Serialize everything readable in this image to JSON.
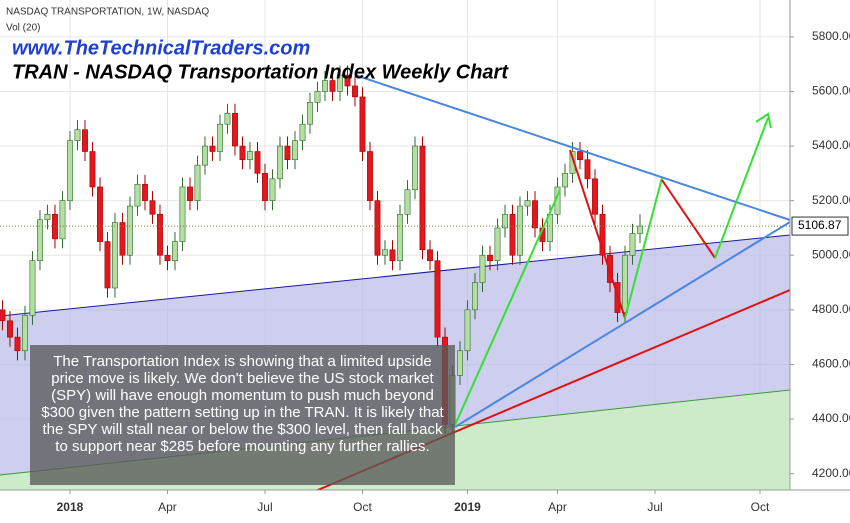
{
  "chart_data": {
    "type": "candlestick",
    "header": "NASDAQ TRANSPORTATION, 1W, NASDAQ",
    "volume_label": "Vol (20)",
    "title": "www.TheTechnicalTraders.com",
    "subtitle": "TRAN - NASDAQ Transportation Index Weekly Chart",
    "annotation": "The Transportation Index is showing that a limited upside price move is likely.  We don't believe the US stock market (SPY) will have enough momentum to push much beyond $300 given the pattern setting up in the TRAN.  It is likely that the SPY will stall near or below the $300 level, then fall back to support near $285 before mounting any further rallies.",
    "open": [
      4800,
      4760,
      4700,
      4650,
      4780,
      4980,
      5130,
      5150,
      5060,
      5200,
      5420,
      5460,
      5380,
      5250,
      5050,
      4880,
      5120,
      5000,
      5180,
      5260,
      5200,
      5150,
      5000,
      4980,
      5050,
      5250,
      5200,
      5330,
      5400,
      5380,
      5480,
      5520,
      5400,
      5350,
      5380,
      5300,
      5200,
      5280,
      5400,
      5350,
      5420,
      5480,
      5560,
      5600,
      5640,
      5600,
      5660,
      5620,
      5580,
      5380,
      5200,
      5000,
      5020,
      4980,
      5150,
      5240,
      5400,
      5020,
      4980,
      4700,
      4380,
      4560,
      4650,
      4800,
      4900,
      5000,
      4980,
      5100,
      5150,
      5000,
      5180,
      5200,
      5100,
      5050,
      5150,
      5250,
      5300,
      5380,
      5350,
      5280,
      5150,
      5000,
      4900,
      4790,
      5000,
      5080
    ],
    "high": [
      4835,
      4795,
      4735,
      4815,
      5015,
      5165,
      5185,
      5185,
      5235,
      5455,
      5495,
      5495,
      5415,
      5285,
      5085,
      5155,
      5155,
      5215,
      5295,
      5295,
      5235,
      5185,
      5035,
      5085,
      5285,
      5285,
      5365,
      5435,
      5435,
      5515,
      5555,
      5555,
      5435,
      5415,
      5415,
      5335,
      5315,
      5435,
      5435,
      5455,
      5515,
      5595,
      5635,
      5675,
      5675,
      5695,
      5695,
      5655,
      5615,
      5415,
      5235,
      5055,
      5055,
      5185,
      5275,
      5435,
      5435,
      5055,
      5015,
      4735,
      4595,
      4685,
      4835,
      4935,
      5035,
      5035,
      5135,
      5185,
      5185,
      5215,
      5235,
      5235,
      5135,
      5185,
      5285,
      5335,
      5415,
      5415,
      5385,
      5315,
      5185,
      5035,
      4935,
      5035,
      5115,
      5150
    ],
    "low": [
      4725,
      4665,
      4615,
      4615,
      4745,
      4945,
      5095,
      5025,
      5025,
      5165,
      5385,
      5345,
      5215,
      5015,
      4845,
      4845,
      4965,
      4965,
      5145,
      5165,
      5115,
      4965,
      4945,
      4945,
      5015,
      5165,
      5165,
      5295,
      5345,
      5345,
      5445,
      5365,
      5315,
      5315,
      5265,
      5165,
      5165,
      5245,
      5315,
      5315,
      5385,
      5445,
      5525,
      5565,
      5565,
      5565,
      5585,
      5545,
      5345,
      5165,
      4965,
      4965,
      4945,
      4945,
      5115,
      5205,
      4985,
      4945,
      4665,
      4345,
      4345,
      4525,
      4615,
      4765,
      4865,
      4945,
      4945,
      5065,
      4965,
      4965,
      5145,
      5065,
      5015,
      5015,
      5115,
      5215,
      5265,
      5315,
      5245,
      5115,
      4965,
      4865,
      4755,
      4755,
      4965,
      5045
    ],
    "close": [
      4760,
      4700,
      4650,
      4780,
      4980,
      5130,
      5150,
      5060,
      5200,
      5420,
      5460,
      5380,
      5250,
      5050,
      4880,
      5120,
      5000,
      5180,
      5260,
      5200,
      5150,
      5000,
      4980,
      5050,
      5250,
      5200,
      5330,
      5400,
      5380,
      5480,
      5520,
      5400,
      5350,
      5380,
      5300,
      5200,
      5280,
      5400,
      5350,
      5420,
      5480,
      5560,
      5600,
      5640,
      5600,
      5660,
      5620,
      5580,
      5380,
      5200,
      5000,
      5020,
      4980,
      5150,
      5240,
      5400,
      5020,
      4980,
      4700,
      4380,
      4560,
      4650,
      4800,
      4900,
      5000,
      4980,
      5100,
      5150,
      5000,
      5180,
      5200,
      5100,
      5050,
      5150,
      5250,
      5300,
      5380,
      5350,
      5280,
      5150,
      5000,
      4900,
      4790,
      5000,
      5080,
      5106.87
    ],
    "up_color": "#b5dfa2",
    "down_color": "#e0191f",
    "last_price": 5106.87,
    "xlim": [
      -0.33,
      105
    ],
    "xticks": [
      {
        "value": 9,
        "label": "2018"
      },
      {
        "value": 22,
        "label": "Apr"
      },
      {
        "value": 35,
        "label": "Jul"
      },
      {
        "value": 48,
        "label": "Oct"
      },
      {
        "value": 62,
        "label": "2019"
      },
      {
        "value": 74,
        "label": "Apr"
      },
      {
        "value": 87,
        "label": "Jul"
      },
      {
        "value": 101,
        "label": "Oct"
      }
    ],
    "ylim": [
      4140,
      5935
    ],
    "yticks": [
      {
        "value": 4200,
        "label": "4200.00"
      },
      {
        "value": 4400,
        "label": "4400.00"
      },
      {
        "value": 4600,
        "label": "4600.00"
      },
      {
        "value": 4800,
        "label": "4800.00"
      },
      {
        "value": 5000,
        "label": "5000.00"
      },
      {
        "value": 5200,
        "label": "5200.00"
      },
      {
        "value": 5400,
        "label": "5400.00"
      },
      {
        "value": 5600,
        "label": "5600.00"
      },
      {
        "value": 5800,
        "label": "5800.00"
      }
    ],
    "grid": true
  }
}
